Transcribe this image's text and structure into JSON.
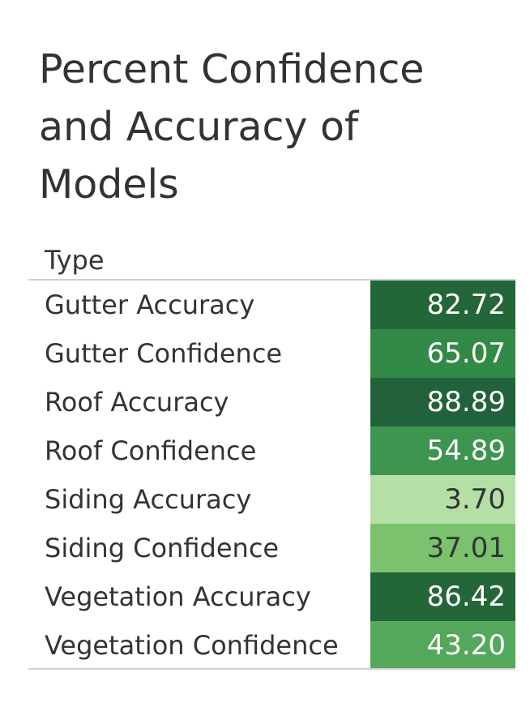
{
  "chart_data": {
    "type": "table",
    "title": "Percent Confidence and Accuracy of Models",
    "column_header": "Type",
    "rows": [
      {
        "label": "Gutter Accuracy",
        "value": "82.72",
        "fill": "#236637",
        "text_color": "#ffffff"
      },
      {
        "label": "Gutter Confidence",
        "value": "65.07",
        "fill": "#338a46",
        "text_color": "#ffffff"
      },
      {
        "label": "Roof Accuracy",
        "value": "88.89",
        "fill": "#22623a",
        "text_color": "#ffffff"
      },
      {
        "label": "Roof Confidence",
        "value": "54.89",
        "fill": "#3d9550",
        "text_color": "#ffffff"
      },
      {
        "label": "Siding Accuracy",
        "value": "3.70",
        "fill": "#b4e0a6",
        "text_color": "#333333"
      },
      {
        "label": "Siding Confidence",
        "value": "37.01",
        "fill": "#7bc26f",
        "text_color": "#333333"
      },
      {
        "label": "Vegetation Accuracy",
        "value": "86.42",
        "fill": "#236637",
        "text_color": "#ffffff"
      },
      {
        "label": "Vegetation Confidence",
        "value": "43.20",
        "fill": "#54a85b",
        "text_color": "#ffffff"
      }
    ]
  }
}
